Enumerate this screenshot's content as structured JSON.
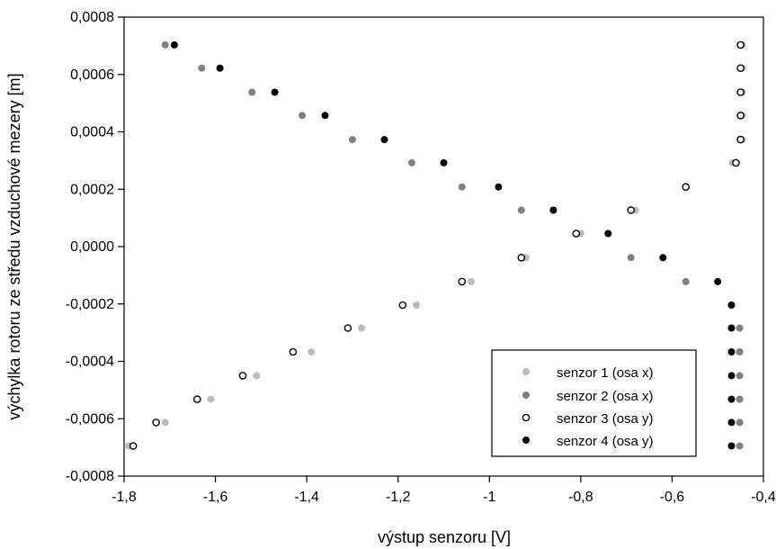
{
  "chart_data": {
    "type": "scatter",
    "title": "",
    "xlabel": "výstup senzoru [V]",
    "ylabel": "výchylka rotoru ze středu vzduchové mezery [m]",
    "xlim": [
      -1.8,
      -0.4
    ],
    "ylim": [
      -0.0008,
      0.0008
    ],
    "xticks": [
      "-1,8",
      "-1,6",
      "-1,4",
      "-1,2",
      "-1",
      "-0,8",
      "-0,6",
      "-0,4"
    ],
    "yticks": [
      "0,0008",
      "0,0006",
      "0,0004",
      "0,0002",
      "0,0000",
      "-0,0002",
      "-0,0004",
      "-0,0006",
      "-0,0008"
    ],
    "grid": false,
    "legend_position": "bottom-right",
    "series": [
      {
        "name": "senzor 1 (osa x)",
        "color": "#bbbbbb",
        "marker": "filled-circle",
        "points": [
          [
            -0.446,
            0.000703
          ],
          [
            -0.446,
            0.000622
          ],
          [
            -0.446,
            0.000538
          ],
          [
            -0.446,
            0.000457
          ],
          [
            -0.446,
            0.000373
          ],
          [
            -0.468,
            0.000292
          ],
          [
            -0.68,
            0.000127
          ],
          [
            -0.8,
            4.55e-05
          ],
          [
            -0.92,
            -3.85e-05
          ],
          [
            -1.04,
            -0.000122
          ],
          [
            -1.16,
            -0.000204
          ],
          [
            -1.28,
            -0.000284
          ],
          [
            -1.39,
            -0.000367
          ],
          [
            -1.51,
            -0.00045
          ],
          [
            -1.61,
            -0.000532
          ],
          [
            -1.71,
            -0.000613
          ],
          [
            -1.79,
            -0.000695
          ]
        ]
      },
      {
        "name": "senzor 2 (osa x)",
        "color": "#808080",
        "marker": "filled-circle",
        "points": [
          [
            -1.71,
            0.000703
          ],
          [
            -1.63,
            0.000622
          ],
          [
            -1.52,
            0.000538
          ],
          [
            -1.41,
            0.000457
          ],
          [
            -1.3,
            0.000373
          ],
          [
            -1.17,
            0.000292
          ],
          [
            -1.06,
            0.000208
          ],
          [
            -0.93,
            0.000127
          ],
          [
            -0.81,
            4.55e-05
          ],
          [
            -0.69,
            -3.85e-05
          ],
          [
            -0.57,
            -0.000122
          ],
          [
            -0.452,
            -0.000284
          ],
          [
            -0.452,
            -0.000367
          ],
          [
            -0.452,
            -0.00045
          ],
          [
            -0.452,
            -0.000532
          ],
          [
            -0.452,
            -0.000613
          ],
          [
            -0.452,
            -0.000695
          ],
          [
            -0.57,
            0.000208
          ]
        ]
      },
      {
        "name": "senzor 3 (osa y)",
        "color": "#000000",
        "marker": "open-circle",
        "points": [
          [
            -0.45,
            0.000703
          ],
          [
            -0.45,
            0.000622
          ],
          [
            -0.45,
            0.000538
          ],
          [
            -0.45,
            0.000457
          ],
          [
            -0.45,
            0.000373
          ],
          [
            -0.46,
            0.000292
          ],
          [
            -0.57,
            0.000208
          ],
          [
            -0.69,
            0.000127
          ],
          [
            -0.81,
            4.55e-05
          ],
          [
            -0.93,
            -3.85e-05
          ],
          [
            -1.06,
            -0.000122
          ],
          [
            -1.19,
            -0.000204
          ],
          [
            -1.31,
            -0.000284
          ],
          [
            -1.43,
            -0.000367
          ],
          [
            -1.54,
            -0.00045
          ],
          [
            -1.64,
            -0.000532
          ],
          [
            -1.73,
            -0.000613
          ],
          [
            -1.78,
            -0.000695
          ]
        ]
      },
      {
        "name": "senzor 4 (osa y)",
        "color": "#000000",
        "marker": "filled-circle",
        "points": [
          [
            -1.69,
            0.000703
          ],
          [
            -1.59,
            0.000622
          ],
          [
            -1.47,
            0.000538
          ],
          [
            -1.36,
            0.000457
          ],
          [
            -1.23,
            0.000373
          ],
          [
            -1.1,
            0.000292
          ],
          [
            -0.98,
            0.000208
          ],
          [
            -0.86,
            0.000127
          ],
          [
            -0.74,
            4.55e-05
          ],
          [
            -0.62,
            -3.85e-05
          ],
          [
            -0.5,
            -0.000122
          ],
          [
            -0.47,
            -0.000204
          ],
          [
            -0.47,
            -0.000284
          ],
          [
            -0.47,
            -0.000367
          ],
          [
            -0.47,
            -0.00045
          ],
          [
            -0.47,
            -0.000532
          ],
          [
            -0.47,
            -0.000613
          ],
          [
            -0.47,
            -0.000695
          ]
        ]
      }
    ]
  }
}
